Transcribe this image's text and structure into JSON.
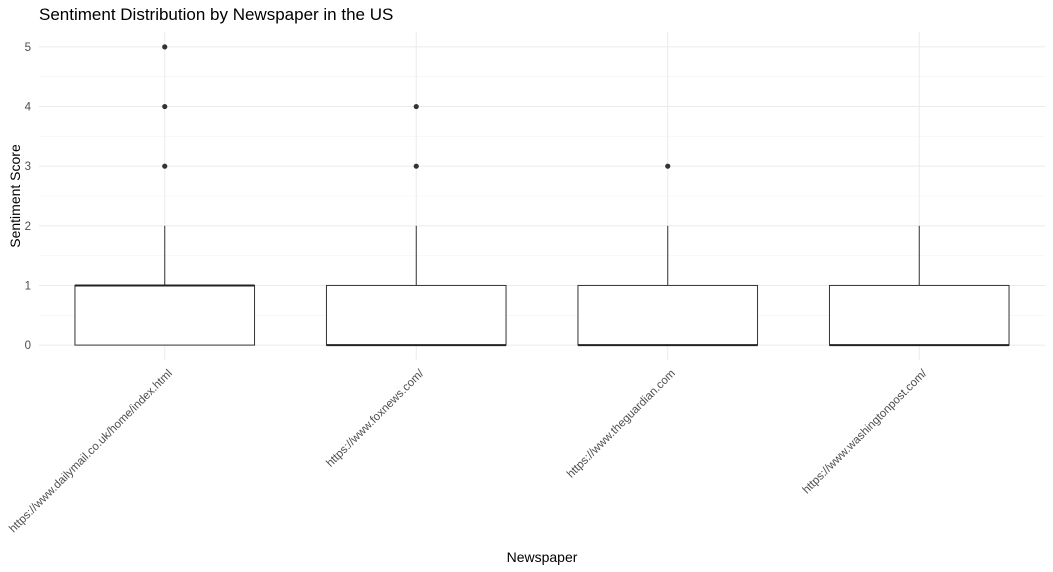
{
  "chart_data": {
    "type": "boxplot",
    "title": "Sentiment Distribution by Newspaper in the US",
    "xlabel": "Newspaper",
    "ylabel": "Sentiment Score",
    "ylim": [
      -0.25,
      5.25
    ],
    "yticks": [
      0,
      1,
      2,
      3,
      4,
      5
    ],
    "grid": true,
    "categories": [
      "https://www.dailymail.co.uk/home/index.html",
      "https://www.foxnews.com/",
      "https://www.theguardian.com",
      "https://www.washingtonpost.com/"
    ],
    "boxes": [
      {
        "q1": 0,
        "median": 1,
        "q3": 1,
        "whisker_low": 0,
        "whisker_high": 2,
        "outliers": [
          3,
          4,
          5
        ]
      },
      {
        "q1": 0,
        "median": 0,
        "q3": 1,
        "whisker_low": 0,
        "whisker_high": 2,
        "outliers": [
          3,
          4
        ]
      },
      {
        "q1": 0,
        "median": 0,
        "q3": 1,
        "whisker_low": 0,
        "whisker_high": 2,
        "outliers": [
          3
        ]
      },
      {
        "q1": 0,
        "median": 0,
        "q3": 1,
        "whisker_low": 0,
        "whisker_high": 2,
        "outliers": []
      }
    ]
  }
}
